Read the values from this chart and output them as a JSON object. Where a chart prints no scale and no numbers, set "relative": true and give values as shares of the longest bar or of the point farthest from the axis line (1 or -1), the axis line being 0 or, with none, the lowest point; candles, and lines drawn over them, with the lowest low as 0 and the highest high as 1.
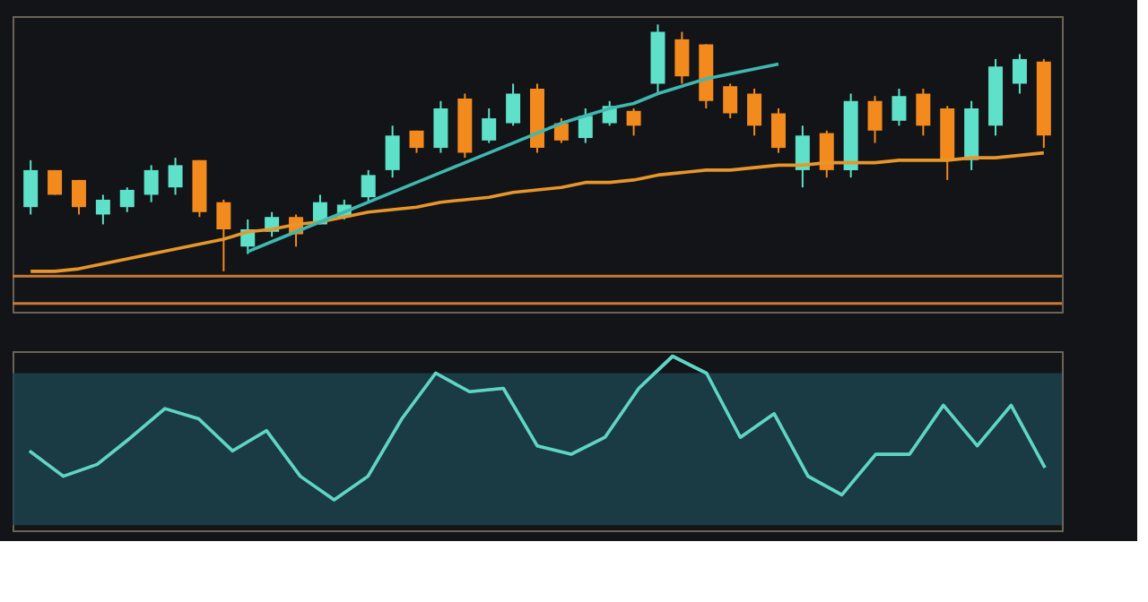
{
  "chart_data": [
    {
      "type": "candlestick",
      "relative": true,
      "tick_labels": false,
      "grid": false,
      "categories": [
        null,
        null,
        null,
        null,
        null,
        null,
        null,
        null,
        null,
        null,
        null,
        null,
        null,
        null,
        null,
        null,
        null,
        null,
        null,
        null,
        null,
        null,
        null,
        null,
        null,
        null,
        null,
        null,
        null,
        null,
        null,
        null,
        null,
        null,
        null,
        null,
        null,
        null,
        null,
        null,
        null,
        null,
        null
      ],
      "ohlc": [
        [
          0.26,
          0.45,
          0.23,
          0.41
        ],
        [
          0.41,
          0.41,
          0.31,
          0.31
        ],
        [
          0.37,
          0.37,
          0.23,
          0.26
        ],
        [
          0.23,
          0.31,
          0.19,
          0.29
        ],
        [
          0.26,
          0.34,
          0.24,
          0.33
        ],
        [
          0.31,
          0.43,
          0.28,
          0.41
        ],
        [
          0.34,
          0.46,
          0.31,
          0.43
        ],
        [
          0.45,
          0.45,
          0.22,
          0.24
        ],
        [
          0.28,
          0.29,
          0,
          0.17
        ],
        [
          0.1,
          0.21,
          0.07,
          0.17
        ],
        [
          0.16,
          0.24,
          0.14,
          0.22
        ],
        [
          0.22,
          0.23,
          0.1,
          0.15
        ],
        [
          0.19,
          0.31,
          0.19,
          0.28
        ],
        [
          0.22,
          0.29,
          0.21,
          0.27
        ],
        [
          0.3,
          0.41,
          0.28,
          0.39
        ],
        [
          0.41,
          0.59,
          0.38,
          0.55
        ],
        [
          0.57,
          0.57,
          0.48,
          0.5
        ],
        [
          0.5,
          0.69,
          0.48,
          0.66
        ],
        [
          0.7,
          0.72,
          0.46,
          0.48
        ],
        [
          0.53,
          0.66,
          0.52,
          0.62
        ],
        [
          0.6,
          0.76,
          0.59,
          0.72
        ],
        [
          0.74,
          0.76,
          0.48,
          0.5
        ],
        [
          0.6,
          0.62,
          0.52,
          0.53
        ],
        [
          0.54,
          0.66,
          0.52,
          0.63
        ],
        [
          0.6,
          0.69,
          0.59,
          0.67
        ],
        [
          0.65,
          0.66,
          0.55,
          0.59
        ],
        [
          0.76,
          1,
          0.72,
          0.97
        ],
        [
          0.94,
          0.97,
          0.76,
          0.79
        ],
        [
          0.92,
          0.92,
          0.66,
          0.69
        ],
        [
          0.75,
          0.76,
          0.62,
          0.64
        ],
        [
          0.72,
          0.74,
          0.55,
          0.59
        ],
        [
          0.64,
          0.66,
          0.48,
          0.5
        ],
        [
          0.41,
          0.59,
          0.34,
          0.55
        ],
        [
          0.56,
          0.57,
          0.38,
          0.41
        ],
        [
          0.41,
          0.72,
          0.38,
          0.69
        ],
        [
          0.69,
          0.71,
          0.52,
          0.57
        ],
        [
          0.61,
          0.74,
          0.59,
          0.71
        ],
        [
          0.72,
          0.74,
          0.55,
          0.59
        ],
        [
          0.66,
          0.67,
          0.37,
          0.45
        ],
        [
          0.45,
          0.69,
          0.41,
          0.66
        ],
        [
          0.59,
          0.86,
          0.55,
          0.83
        ],
        [
          0.76,
          0.88,
          0.72,
          0.86
        ],
        [
          0.85,
          0.86,
          0.5,
          0.55
        ]
      ],
      "colors": [
        "#5fe0c8",
        "#f28a1e",
        "#f28a1e",
        "#5fe0c8",
        "#5fe0c8",
        "#5fe0c8",
        "#5fe0c8",
        "#f28a1e",
        "#f28a1e",
        "#5fe0c8",
        "#5fe0c8",
        "#f28a1e",
        "#5fe0c8",
        "#5fe0c8",
        "#5fe0c8",
        "#5fe0c8",
        "#f28a1e",
        "#5fe0c8",
        "#f28a1e",
        "#5fe0c8",
        "#5fe0c8",
        "#f28a1e",
        "#f28a1e",
        "#5fe0c8",
        "#5fe0c8",
        "#f28a1e",
        "#5fe0c8",
        "#f28a1e",
        "#f28a1e",
        "#f28a1e",
        "#f28a1e",
        "#f28a1e",
        "#5fe0c8",
        "#f28a1e",
        "#5fe0c8",
        "#f28a1e",
        "#5fe0c8",
        "#f28a1e",
        "#f28a1e",
        "#5fe0c8",
        "#5fe0c8",
        "#5fe0c8",
        "#f28a1e"
      ],
      "series": [
        {
          "type": "line",
          "color": "#e8962a",
          "values": [
            0,
            0,
            0.01,
            0.03,
            0.05,
            0.07,
            0.09,
            0.11,
            0.13,
            0.16,
            0.17,
            0.19,
            0.2,
            0.22,
            0.24,
            0.25,
            0.26,
            0.28,
            0.29,
            0.3,
            0.32,
            0.33,
            0.34,
            0.36,
            0.36,
            0.37,
            0.39,
            0.4,
            0.41,
            0.41,
            0.42,
            0.43,
            0.43,
            0.44,
            0.44,
            0.44,
            0.45,
            0.45,
            0.45,
            0.46,
            0.46,
            0.47,
            0.48
          ]
        },
        {
          "type": "line",
          "color": "#3fb8b0",
          "values": [
            null,
            null,
            null,
            null,
            null,
            null,
            null,
            null,
            null,
            0.08,
            0.12,
            0.16,
            0.2,
            0.24,
            0.28,
            0.32,
            0.36,
            0.4,
            0.44,
            0.48,
            0.52,
            0.56,
            0.6,
            0.63,
            0.66,
            0.68,
            0.72,
            0.75,
            0.78,
            0.8,
            0.82,
            0.84,
            null,
            null,
            null,
            null,
            null,
            null,
            null,
            null,
            null,
            null,
            null
          ]
        }
      ],
      "ref_lines": [
        {
          "axis": "y",
          "value": -0.02,
          "color": "#c8783a"
        },
        {
          "axis": "y",
          "value": -0.13,
          "color": "#c8783a"
        }
      ]
    },
    {
      "type": "line",
      "relative": true,
      "tick_labels": false,
      "grid": false,
      "categories": [
        null,
        null,
        null,
        null,
        null,
        null,
        null,
        null,
        null,
        null,
        null,
        null,
        null,
        null,
        null,
        null,
        null,
        null,
        null,
        null,
        null,
        null,
        null,
        null,
        null,
        null,
        null,
        null,
        null,
        null,
        null
      ],
      "series": [
        {
          "color": "#5fd6c4",
          "values": [
            0.44,
            0.29,
            0.36,
            0.52,
            0.69,
            0.63,
            0.44,
            0.56,
            0.29,
            0.15,
            0.29,
            0.63,
            0.9,
            0.79,
            0.81,
            0.47,
            0.42,
            0.52,
            0.81,
            1,
            0.9,
            0.52,
            0.66,
            0.29,
            0.18,
            0.42,
            0.42,
            0.71,
            0.47,
            0.71,
            0.34
          ]
        }
      ],
      "bands": [
        {
          "axis": "y",
          "from": 0,
          "to": 0.9,
          "color": "#1d4450"
        }
      ]
    }
  ]
}
